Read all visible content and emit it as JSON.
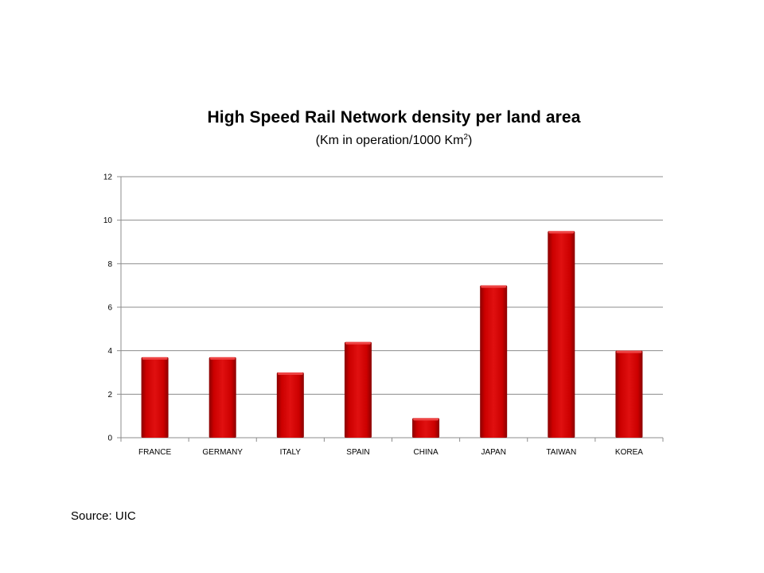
{
  "chart_data": {
    "type": "bar",
    "title": "High Speed Rail Network density per land area",
    "subtitle_main": "(Km in operation/1000 Km",
    "subtitle_sup": "2",
    "subtitle_end": ")",
    "xlabel": "",
    "ylabel": "",
    "categories": [
      "FRANCE",
      "GERMANY",
      "ITALY",
      "SPAIN",
      "CHINA",
      "JAPAN",
      "TAIWAN",
      "KOREA"
    ],
    "values": [
      3.7,
      3.7,
      3.0,
      4.4,
      0.9,
      7.0,
      9.5,
      4.0
    ],
    "ylim": [
      0,
      12
    ],
    "yticks": [
      "0",
      "2",
      "4",
      "6",
      "8",
      "10",
      "12"
    ],
    "grid": true,
    "legend": "none",
    "bar_color": "#cc0000",
    "bar_highlight": "#ee4444",
    "bar_shadow": "#880000"
  },
  "footer": {
    "source": "Source: UIC"
  }
}
